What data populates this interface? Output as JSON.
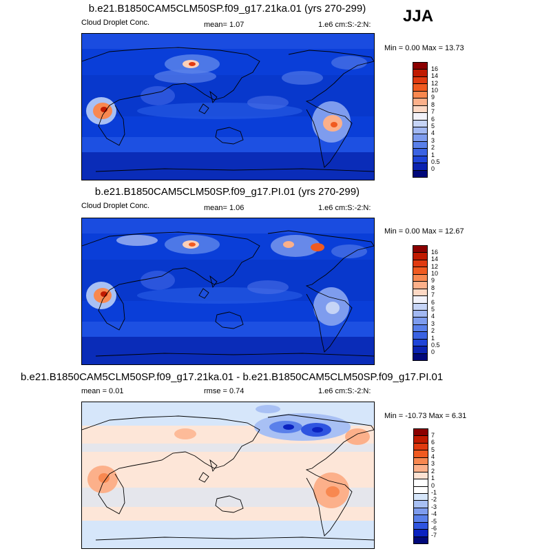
{
  "season": "JJA",
  "panels": [
    {
      "title": "b.e21.B1850CAM5CLM50SP.f09_g17.21ka.01 (yrs 270-299)",
      "left_text": "Cloud Droplet Conc.",
      "mean_text": "mean=   1.07",
      "units": "1.e6 cm:S:-2:N:",
      "minmax": "Min =   0.00 Max =  13.73"
    },
    {
      "title": "b.e21.B1850CAM5CLM50SP.f09_g17.PI.01 (yrs 270-299)",
      "left_text": "Cloud Droplet Conc.",
      "mean_text": "mean=   1.06",
      "units": "1.e6 cm:S:-2:N:",
      "minmax": "Min =   0.00 Max =  12.67"
    },
    {
      "title": "b.e21.B1850CAM5CLM50SP.f09_g17.21ka.01 - b.e21.B1850CAM5CLM50SP.f09_g17.PI.01",
      "left_text": "mean =   0.01",
      "mean_text": "rmse =   0.74",
      "units": "1.e6 cm:S:-2:N:",
      "minmax": "Min = -10.73 Max =   6.31"
    }
  ],
  "colorbar_abs": {
    "labels": [
      "16",
      "14",
      "12",
      "10",
      "9",
      "8",
      "7",
      "6",
      "5",
      "4",
      "3",
      "2",
      "1",
      "0.5",
      "0"
    ],
    "colors": [
      "#8b0000",
      "#c01a00",
      "#e03a10",
      "#f05a20",
      "#f88850",
      "#fcb08a",
      "#fdd8c4",
      "#f2f2fa",
      "#c6d4f6",
      "#a2b8f2",
      "#7e9cee",
      "#5a80ea",
      "#3a62e2",
      "#1e44d8",
      "#0a22b0",
      "#00087a"
    ]
  },
  "colorbar_diff": {
    "labels": [
      "7",
      "6",
      "5",
      "4",
      "3",
      "2",
      "1",
      "0",
      "-1",
      "-2",
      "-3",
      "-4",
      "-5",
      "-6",
      "-7"
    ],
    "colors": [
      "#8b0000",
      "#c01a00",
      "#e03a10",
      "#f05a20",
      "#f88850",
      "#fcb08a",
      "#fde2d2",
      "#ffffff",
      "#ffffff",
      "#d6e6fa",
      "#a8c0f4",
      "#7e9cee",
      "#5a80ea",
      "#2e54e0",
      "#0a22c0",
      "#00087a"
    ]
  }
}
